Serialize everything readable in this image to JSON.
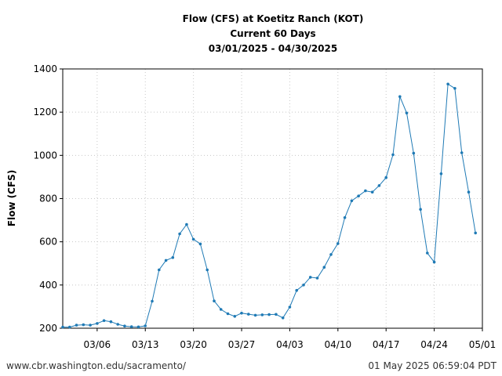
{
  "chart_data": {
    "type": "line",
    "title": [
      "Flow (CFS) at Koetitz Ranch (KOT)",
      "Current 60 Days",
      "03/01/2025 - 04/30/2025"
    ],
    "xlabel": "",
    "ylabel": "Flow (CFS)",
    "ylim": [
      200,
      1400
    ],
    "yticks": [
      200,
      400,
      600,
      800,
      1000,
      1200,
      1400
    ],
    "xlim": [
      "2025-03-01",
      "2025-05-01"
    ],
    "xticks": [
      {
        "date": "2025-03-06",
        "label": "03/06"
      },
      {
        "date": "2025-03-13",
        "label": "03/13"
      },
      {
        "date": "2025-03-20",
        "label": "03/20"
      },
      {
        "date": "2025-03-27",
        "label": "03/27"
      },
      {
        "date": "2025-04-03",
        "label": "04/03"
      },
      {
        "date": "2025-04-10",
        "label": "04/10"
      },
      {
        "date": "2025-04-17",
        "label": "04/17"
      },
      {
        "date": "2025-04-24",
        "label": "04/24"
      },
      {
        "date": "2025-05-01",
        "label": "05/01"
      }
    ],
    "grid": true,
    "color": "#1f7ab5",
    "series": [
      {
        "x": [
          "2025-03-01",
          "2025-03-02",
          "2025-03-03",
          "2025-03-04",
          "2025-03-05",
          "2025-03-06",
          "2025-03-07",
          "2025-03-08",
          "2025-03-09",
          "2025-03-10",
          "2025-03-11",
          "2025-03-12",
          "2025-03-13",
          "2025-03-14",
          "2025-03-15",
          "2025-03-16",
          "2025-03-17",
          "2025-03-18",
          "2025-03-19",
          "2025-03-20",
          "2025-03-21",
          "2025-03-22",
          "2025-03-23",
          "2025-03-24",
          "2025-03-25",
          "2025-03-26",
          "2025-03-27",
          "2025-03-28",
          "2025-03-29",
          "2025-03-30",
          "2025-03-31",
          "2025-04-01",
          "2025-04-02",
          "2025-04-03",
          "2025-04-04",
          "2025-04-05",
          "2025-04-06",
          "2025-04-07",
          "2025-04-08",
          "2025-04-09",
          "2025-04-10",
          "2025-04-11",
          "2025-04-12",
          "2025-04-13",
          "2025-04-14",
          "2025-04-15",
          "2025-04-16",
          "2025-04-17",
          "2025-04-18",
          "2025-04-19",
          "2025-04-20",
          "2025-04-21",
          "2025-04-22",
          "2025-04-23",
          "2025-04-24",
          "2025-04-25",
          "2025-04-26",
          "2025-04-27",
          "2025-04-28",
          "2025-04-29",
          "2025-04-30"
        ],
        "values": [
          205,
          205,
          214,
          216,
          214,
          222,
          235,
          230,
          218,
          210,
          207,
          206,
          211,
          325,
          470,
          514,
          527,
          637,
          680,
          612,
          590,
          470,
          326,
          287,
          267,
          255,
          270,
          265,
          260,
          262,
          263,
          264,
          248,
          298,
          375,
          400,
          436,
          432,
          482,
          541,
          592,
          712,
          790,
          812,
          836,
          830,
          860,
          897,
          1003,
          1272,
          1196,
          1010,
          750,
          548,
          506,
          915,
          1330,
          1310,
          1012,
          830,
          641
        ]
      }
    ]
  },
  "footer": {
    "left": "www.cbr.washington.edu/sacramento/",
    "right": "01 May 2025 06:59:04 PDT"
  }
}
